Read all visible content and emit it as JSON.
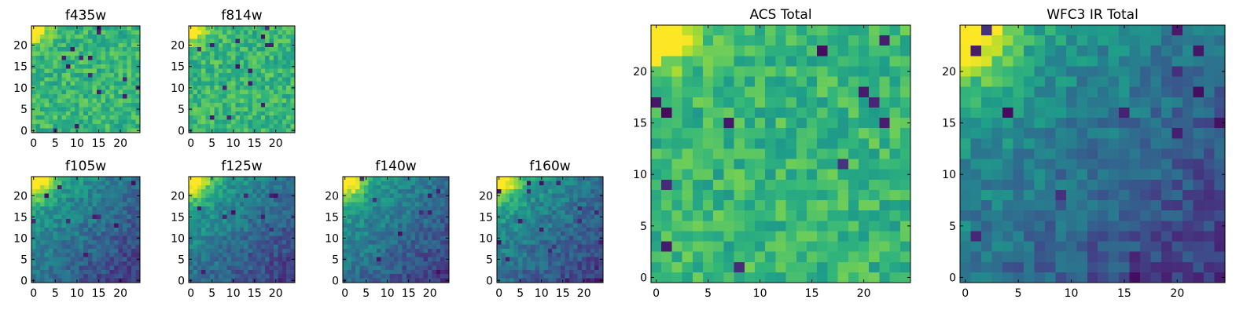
{
  "chart_data": [
    {
      "type": "heatmap",
      "title": "f435w",
      "grid": false,
      "colormap": "viridis",
      "size": [
        25,
        25
      ],
      "xlim": [
        0,
        24
      ],
      "ylim": [
        0,
        24
      ],
      "xticks": [
        0,
        5,
        10,
        15,
        20
      ],
      "yticks": [
        0,
        5,
        10,
        15,
        20
      ],
      "pattern": "noisy",
      "bright_corner": "top-left",
      "dark_pixels": 14
    },
    {
      "type": "heatmap",
      "title": "f814w",
      "grid": false,
      "colormap": "viridis",
      "size": [
        25,
        25
      ],
      "xlim": [
        0,
        24
      ],
      "ylim": [
        0,
        24
      ],
      "xticks": [
        0,
        5,
        10,
        15,
        20
      ],
      "yticks": [
        0,
        5,
        10,
        15,
        20
      ],
      "pattern": "noisy",
      "bright_corner": "top-left",
      "dark_pixels": 14
    },
    {
      "type": "heatmap",
      "title": "f105w",
      "grid": false,
      "colormap": "viridis",
      "size": [
        25,
        25
      ],
      "xlim": [
        0,
        24
      ],
      "ylim": [
        0,
        24
      ],
      "xticks": [
        0,
        5,
        10,
        15,
        20
      ],
      "yticks": [
        0,
        5,
        10,
        15,
        20
      ],
      "pattern": "gradient",
      "bright_corner": "top-left",
      "dark_pixels": 10
    },
    {
      "type": "heatmap",
      "title": "f125w",
      "grid": false,
      "colormap": "viridis",
      "size": [
        25,
        25
      ],
      "xlim": [
        0,
        24
      ],
      "ylim": [
        0,
        24
      ],
      "xticks": [
        0,
        5,
        10,
        15,
        20
      ],
      "yticks": [
        0,
        5,
        10,
        15,
        20
      ],
      "pattern": "gradient",
      "bright_corner": "top-left",
      "dark_pixels": 10
    },
    {
      "type": "heatmap",
      "title": "f140w",
      "grid": false,
      "colormap": "viridis",
      "size": [
        25,
        25
      ],
      "xlim": [
        0,
        24
      ],
      "ylim": [
        0,
        24
      ],
      "xticks": [
        0,
        5,
        10,
        15,
        20
      ],
      "yticks": [
        0,
        5,
        10,
        15,
        20
      ],
      "pattern": "gradient",
      "bright_corner": "top-left",
      "dark_pixels": 10
    },
    {
      "type": "heatmap",
      "title": "f160w",
      "grid": false,
      "colormap": "viridis",
      "size": [
        25,
        25
      ],
      "xlim": [
        0,
        24
      ],
      "ylim": [
        0,
        24
      ],
      "xticks": [
        0,
        5,
        10,
        15,
        20
      ],
      "yticks": [
        0,
        5,
        10,
        15,
        20
      ],
      "pattern": "gradient",
      "bright_corner": "top-left",
      "dark_pixels": 16
    },
    {
      "type": "heatmap",
      "title": "ACS Total",
      "grid": false,
      "colormap": "viridis",
      "size": [
        25,
        25
      ],
      "xlim": [
        0,
        24
      ],
      "ylim": [
        0,
        24
      ],
      "xticks": [
        0,
        5,
        10,
        15,
        20
      ],
      "yticks": [
        0,
        5,
        10,
        15,
        20
      ],
      "pattern": "noisy",
      "bright_corner": "top-left",
      "dark_pixels": 12
    },
    {
      "type": "heatmap",
      "title": "WFC3 IR Total",
      "grid": false,
      "colormap": "viridis",
      "size": [
        25,
        25
      ],
      "xlim": [
        0,
        24
      ],
      "ylim": [
        0,
        24
      ],
      "xticks": [
        0,
        5,
        10,
        15,
        20
      ],
      "yticks": [
        0,
        5,
        10,
        15,
        20
      ],
      "pattern": "gradient",
      "bright_corner": "top-left",
      "dark_pixels": 14
    }
  ]
}
